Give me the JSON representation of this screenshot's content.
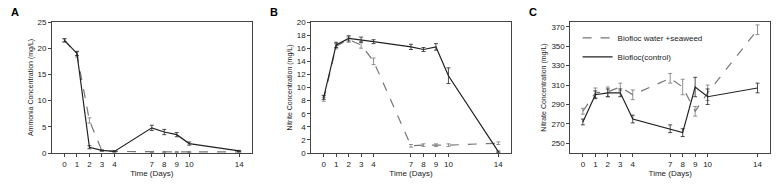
{
  "chart_data": [
    {
      "type": "line",
      "title": "A",
      "xlabel": "Time (Days)",
      "ylabel": "Ammonia Concentration (mg/L)",
      "x": [
        0,
        1,
        2,
        3,
        4,
        7,
        8,
        9,
        10,
        14
      ],
      "xlim": [
        -1,
        15
      ],
      "xticks": [
        0,
        1,
        2,
        3,
        4,
        7,
        8,
        9,
        10,
        14
      ],
      "ylim": [
        0,
        25
      ],
      "yticks": [
        0,
        5,
        10,
        15,
        20,
        25
      ],
      "grid": false,
      "series": [
        {
          "name": "Biofloc water +seaweed",
          "color": "#777777",
          "line_style": "dashed",
          "values": [
            21.5,
            18.8,
            6.2,
            0.4,
            0.3,
            0.2,
            0.2,
            0.2,
            0.2,
            0.2
          ],
          "yerr": [
            0.3,
            0.5,
            0.5,
            0.1,
            0.1,
            0.1,
            0.1,
            0.1,
            0.1,
            0.1
          ]
        },
        {
          "name": "Biofloc(control)",
          "color": "#222222",
          "line_style": "solid",
          "values": [
            21.5,
            19.0,
            1.1,
            0.5,
            0.3,
            4.8,
            4.0,
            3.5,
            1.8,
            0.4
          ],
          "yerr": [
            0.3,
            0.4,
            0.3,
            0.1,
            0.1,
            0.5,
            0.5,
            0.4,
            0.3,
            0.1
          ]
        }
      ]
    },
    {
      "type": "line",
      "title": "B",
      "xlabel": "Time (Days)",
      "ylabel": "Nitrite Concentration (mg/L)",
      "x": [
        0,
        1,
        2,
        3,
        4,
        7,
        8,
        9,
        10,
        14
      ],
      "xlim": [
        -1,
        15
      ],
      "xticks": [
        0,
        1,
        2,
        3,
        4,
        7,
        8,
        9,
        10,
        14
      ],
      "ylim": [
        0,
        20
      ],
      "yticks": [
        0,
        2,
        4,
        6,
        8,
        10,
        12,
        14,
        16,
        18,
        20
      ],
      "grid": false,
      "series": [
        {
          "name": "Biofloc water +seaweed",
          "color": "#777777",
          "line_style": "dashed",
          "values": [
            8.2,
            16.3,
            17.3,
            16.5,
            14.0,
            1.1,
            1.2,
            1.2,
            1.2,
            1.5
          ],
          "yerr": [
            0.3,
            0.4,
            0.4,
            0.5,
            0.5,
            0.2,
            0.2,
            0.2,
            0.2,
            0.2
          ]
        },
        {
          "name": "Biofloc(control)",
          "color": "#222222",
          "line_style": "solid",
          "values": [
            8.5,
            16.5,
            17.5,
            17.3,
            17.0,
            16.2,
            15.8,
            16.2,
            11.8,
            0.2
          ],
          "yerr": [
            0.3,
            0.4,
            0.4,
            0.4,
            0.3,
            0.4,
            0.3,
            0.5,
            1.2,
            0.1
          ]
        }
      ]
    },
    {
      "type": "line",
      "title": "C",
      "xlabel": "Time (Days)",
      "ylabel": "Nitrate Concentration (mg/L)",
      "x": [
        0,
        1,
        2,
        3,
        4,
        7,
        8,
        9,
        10,
        14
      ],
      "xlim": [
        -1,
        15
      ],
      "xticks": [
        0,
        1,
        2,
        3,
        4,
        7,
        8,
        9,
        10,
        14
      ],
      "ylim": [
        240,
        375
      ],
      "yticks": [
        250,
        270,
        290,
        310,
        330,
        350,
        370
      ],
      "grid": false,
      "legend": "upper left",
      "series": [
        {
          "name": "Biofloc water +seaweed",
          "color": "#777777",
          "line_style": "dashed",
          "values": [
            283,
            302,
            303,
            308,
            300,
            317,
            308,
            283,
            302,
            367
          ],
          "yerr": [
            3,
            5,
            5,
            4,
            5,
            5,
            8,
            5,
            8,
            5
          ]
        },
        {
          "name": "Biofloc(control)",
          "color": "#222222",
          "line_style": "solid",
          "values": [
            272,
            300,
            302,
            302,
            275,
            265,
            261,
            308,
            298,
            307
          ],
          "yerr": [
            3,
            4,
            4,
            4,
            4,
            4,
            4,
            10,
            8,
            5
          ]
        }
      ]
    }
  ]
}
